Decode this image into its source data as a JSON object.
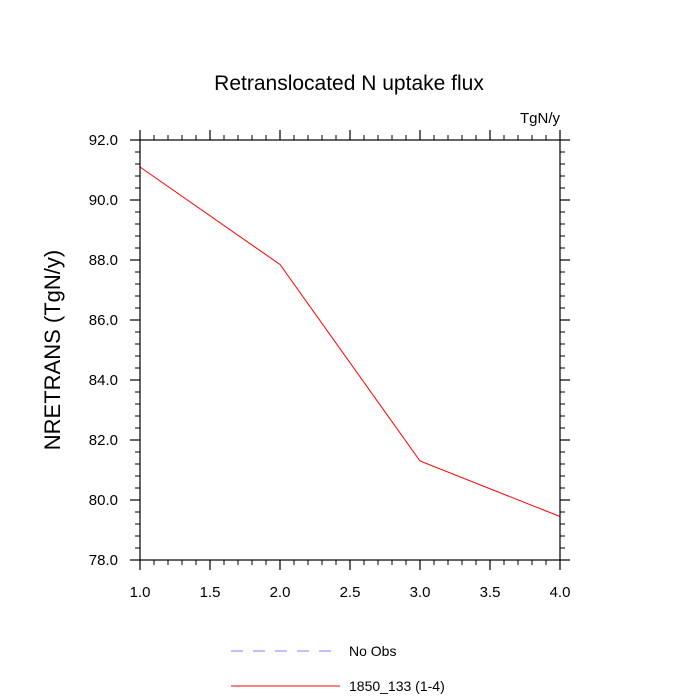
{
  "chart_data": {
    "type": "line",
    "title": "Retranslocated N uptake flux",
    "units_label": "TgN/y",
    "xlabel": "",
    "ylabel": "NRETRANS  (TgN/y)",
    "xlim": [
      1.0,
      4.0
    ],
    "ylim": [
      78.0,
      92.0
    ],
    "x_ticks": [
      "1.0",
      "1.5",
      "2.0",
      "2.5",
      "3.0",
      "3.5",
      "4.0"
    ],
    "y_ticks": [
      "78.0",
      "80.0",
      "82.0",
      "84.0",
      "86.0",
      "88.0",
      "90.0",
      "92.0"
    ],
    "grid": false,
    "legend_position": "bottom-center",
    "series": [
      {
        "name": "No Obs",
        "color": "#8080ff",
        "dash": "dashed",
        "x": [],
        "y": []
      },
      {
        "name": "1850_133 (1-4)",
        "color": "#ff0000",
        "dash": "solid",
        "x": [
          1.0,
          2.0,
          3.0,
          4.0
        ],
        "y": [
          91.1,
          87.85,
          81.3,
          79.45
        ]
      }
    ]
  }
}
